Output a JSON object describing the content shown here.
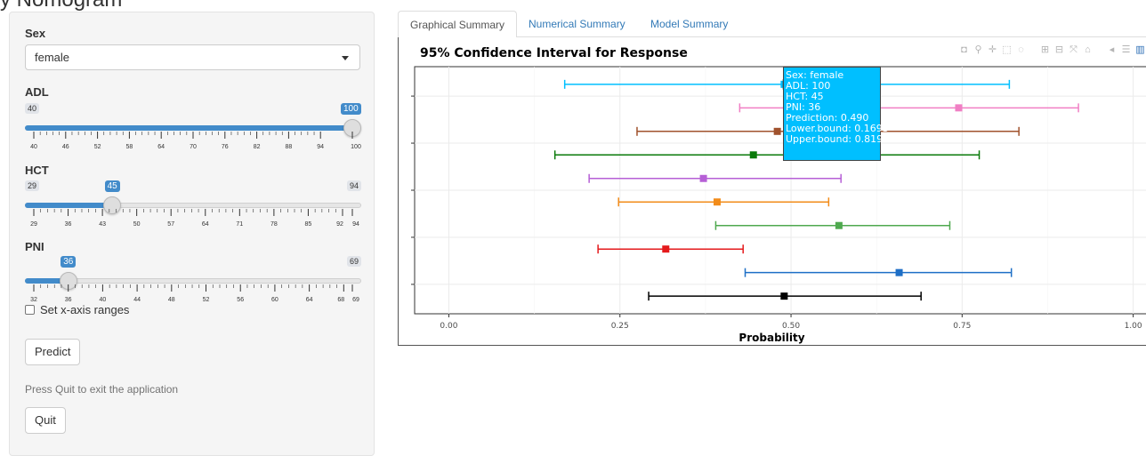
{
  "app": {
    "title_fragment": "y Nomogram"
  },
  "sidebar": {
    "sex": {
      "label": "Sex",
      "value": "female"
    },
    "adl": {
      "label": "ADL",
      "min": 40,
      "max": 100,
      "value": 100,
      "ticks": [
        "40",
        "46",
        "52",
        "58",
        "64",
        "70",
        "76",
        "82",
        "88",
        "94",
        "100"
      ]
    },
    "hct": {
      "label": "HCT",
      "min": 29,
      "max": 94,
      "value": 45,
      "ticks": [
        "29",
        "36",
        "43",
        "50",
        "57",
        "64",
        "71",
        "78",
        "85",
        "92",
        "94"
      ]
    },
    "pni": {
      "label": "PNI",
      "min": 32,
      "max": 69,
      "value": 36,
      "ticks": [
        "32",
        "36",
        "40",
        "44",
        "48",
        "52",
        "56",
        "60",
        "64",
        "68",
        "69"
      ]
    },
    "set_ranges_label": "Set x-axis ranges",
    "predict_label": "Predict",
    "quit_help": "Press Quit to exit the application",
    "quit_label": "Quit"
  },
  "tabs": [
    {
      "label": "Graphical Summary",
      "active": true
    },
    {
      "label": "Numerical Summary",
      "active": false
    },
    {
      "label": "Model Summary",
      "active": false
    }
  ],
  "modebar": {
    "icons": [
      "camera-icon",
      "zoom-icon",
      "pan-icon",
      "box-select-icon",
      "lasso-icon",
      "zoom-in-icon",
      "zoom-out-icon",
      "autoscale-icon",
      "home-icon",
      "spike-lines-icon",
      "compare-hover-icon",
      "plotly-logo-icon"
    ]
  },
  "chart_data": {
    "type": "scatter",
    "title": "95% Confidence Interval for Response",
    "xlabel": "Probability",
    "ylabel": "",
    "xlim": [
      -0.05,
      1.02
    ],
    "x_ticks": [
      "0.00",
      "0.25",
      "0.50",
      "0.75",
      "1.00"
    ],
    "x_tick_values": [
      0,
      0.25,
      0.5,
      0.75,
      1.0
    ],
    "grid": true,
    "series": [
      {
        "color": "#00bfff",
        "point": 0.49,
        "lower": 0.1693,
        "upper": 0.819
      },
      {
        "color": "#f07fc4",
        "point": 0.745,
        "lower": 0.425,
        "upper": 0.92
      },
      {
        "color": "#a0522d",
        "point": 0.48,
        "lower": 0.275,
        "upper": 0.833
      },
      {
        "color": "#0a7a0a",
        "point": 0.445,
        "lower": 0.155,
        "upper": 0.775
      },
      {
        "color": "#b65fd6",
        "point": 0.372,
        "lower": 0.205,
        "upper": 0.573
      },
      {
        "color": "#f28c1a",
        "point": 0.392,
        "lower": 0.248,
        "upper": 0.555
      },
      {
        "color": "#4fa94f",
        "point": 0.57,
        "lower": 0.39,
        "upper": 0.732
      },
      {
        "color": "#e41a1c",
        "point": 0.317,
        "lower": 0.218,
        "upper": 0.43
      },
      {
        "color": "#1e6fc6",
        "point": 0.658,
        "lower": 0.433,
        "upper": 0.822
      },
      {
        "color": "#000000",
        "point": 0.49,
        "lower": 0.292,
        "upper": 0.69
      }
    ],
    "tooltip": {
      "lines": [
        "Sex: female",
        "ADL: 100",
        "HCT: 45",
        "PNI: 36",
        "Prediction: 0.490",
        "Lower.bound: 0.1693",
        "Upper.bound: 0.819"
      ]
    }
  }
}
